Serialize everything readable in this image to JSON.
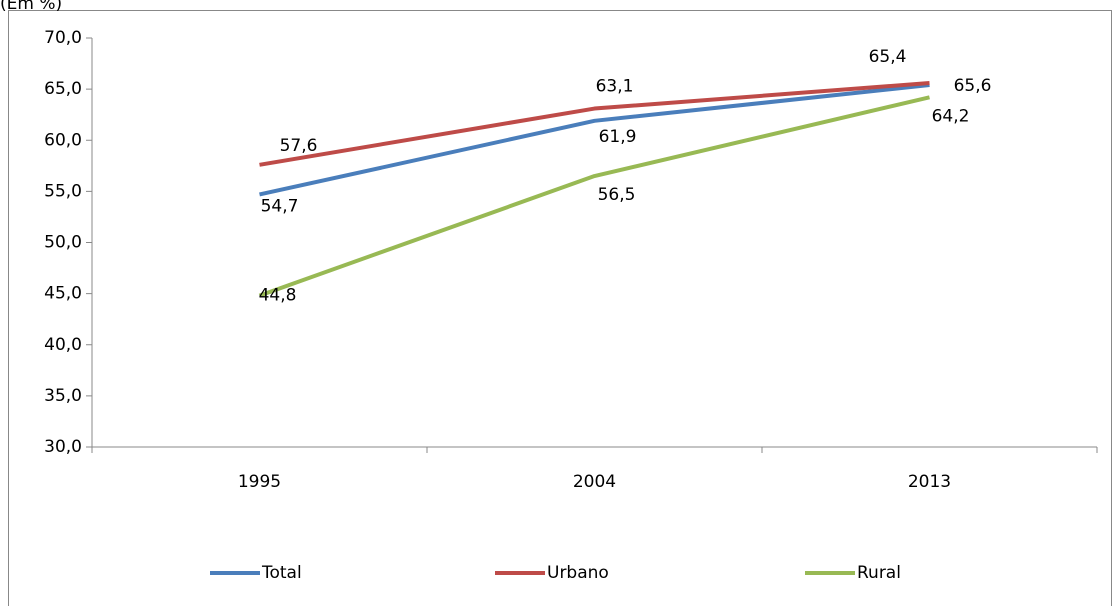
{
  "chart_data": {
    "type": "line",
    "title": "(Em %)",
    "categories": [
      "1995",
      "2004",
      "2013"
    ],
    "series": [
      {
        "name": "Total",
        "color": "#4a7ebb",
        "values": [
          54.7,
          61.9,
          65.4
        ],
        "value_labels": [
          "54,7",
          "61,9",
          "65,4"
        ]
      },
      {
        "name": "Urbano",
        "color": "#be4b48",
        "values": [
          57.6,
          63.1,
          65.6
        ],
        "value_labels": [
          "57,6",
          "63,1",
          "65,6"
        ]
      },
      {
        "name": "Rural",
        "color": "#98b954",
        "values": [
          44.8,
          56.5,
          64.2
        ],
        "value_labels": [
          "44,8",
          "56,5",
          "64,2"
        ]
      }
    ],
    "ylim": [
      30,
      70
    ],
    "yticks": [
      {
        "value": 30,
        "label": "30,0"
      },
      {
        "value": 35,
        "label": "35,0"
      },
      {
        "value": 40,
        "label": "40,0"
      },
      {
        "value": 45,
        "label": "45,0"
      },
      {
        "value": 50,
        "label": "50,0"
      },
      {
        "value": 55,
        "label": "55,0"
      },
      {
        "value": 60,
        "label": "60,0"
      },
      {
        "value": 65,
        "label": "65,0"
      },
      {
        "value": 70,
        "label": "70,0"
      }
    ],
    "grid": false,
    "legend": "bottom"
  }
}
